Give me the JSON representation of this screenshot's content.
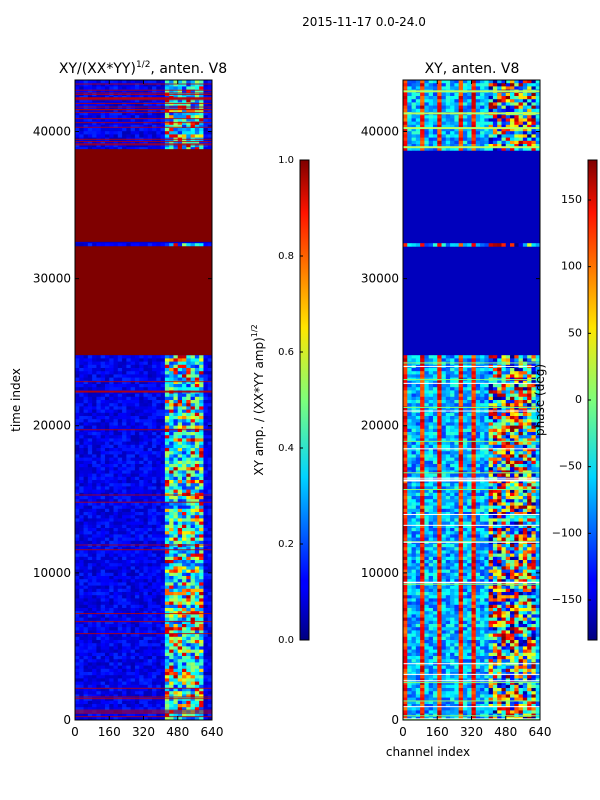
{
  "figure_title": "2015-11-17 0.0-24.0",
  "chart_data": [
    {
      "type": "heatmap",
      "title": "XY/(XX*YY)^{1/2}, anten. V8",
      "title_main": "XY/(XX*YY)",
      "title_sup": "1/2",
      "title_tail": ", anten. V8",
      "xlabel": "",
      "ylabel": "time index",
      "xlim": [
        0,
        640
      ],
      "ylim": [
        0,
        43500
      ],
      "xticks": [
        "0",
        "160",
        "320",
        "480",
        "640"
      ],
      "yticks": [
        "0",
        "10000",
        "20000",
        "30000",
        "40000"
      ],
      "colorbar": {
        "label": "XY amp. / (XX*YY amp)^{1/2}",
        "label_main": "XY amp. / (XX*YY amp)",
        "label_sup": "1/2",
        "range": [
          0,
          1
        ],
        "ticks": [
          "0.0",
          "0.2",
          "0.4",
          "0.6",
          "0.8",
          "1.0"
        ]
      },
      "saturated_bands_time_index": [
        [
          24800,
          32200
        ],
        [
          32500,
          38800
        ]
      ]
    },
    {
      "type": "heatmap",
      "title": "XY, anten. V8",
      "xlabel": "channel index",
      "ylabel": "",
      "xlim": [
        0,
        640
      ],
      "ylim": [
        0,
        43500
      ],
      "xticks": [
        "0",
        "160",
        "320",
        "480",
        "640"
      ],
      "yticks": [
        "0",
        "10000",
        "20000",
        "30000",
        "40000"
      ],
      "colorbar": {
        "label": "phase (deg)",
        "range": [
          -180,
          180
        ],
        "ticks": [
          "−150",
          "−100",
          "−50",
          "0",
          "50",
          "100",
          "150"
        ]
      },
      "blank_bands_time_index": [
        [
          24800,
          32100
        ],
        [
          32300,
          38700
        ]
      ]
    }
  ]
}
